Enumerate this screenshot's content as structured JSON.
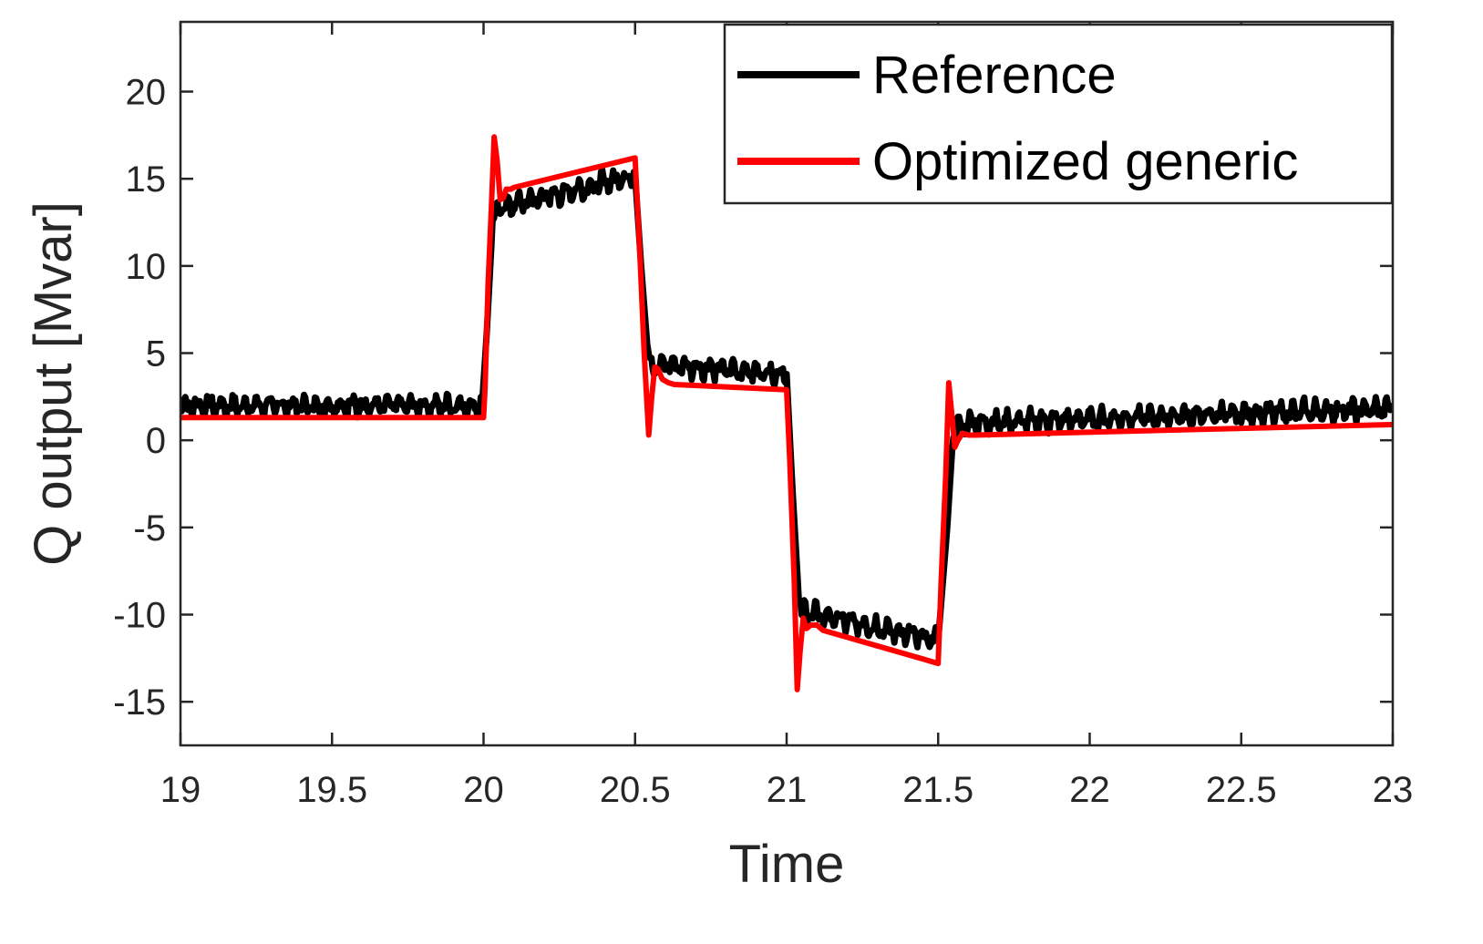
{
  "chart_data": {
    "type": "line",
    "title": "",
    "xlabel": "Time",
    "ylabel": "Q output [Mvar]",
    "xlim": [
      19,
      23
    ],
    "ylim": [
      -17.5,
      24
    ],
    "xticks": [
      19,
      19.5,
      20,
      20.5,
      21,
      21.5,
      22,
      22.5,
      23
    ],
    "xtick_labels": [
      "19",
      "19.5",
      "20",
      "20.5",
      "21",
      "21.5",
      "22",
      "22.5",
      "23"
    ],
    "yticks": [
      -15,
      -10,
      -5,
      0,
      5,
      10,
      15,
      20
    ],
    "ytick_labels": [
      "-15",
      "-10",
      "-5",
      "0",
      "5",
      "10",
      "15",
      "20"
    ],
    "grid": false,
    "legend_position": "top-right",
    "series": [
      {
        "name": "Reference",
        "color": "#000000",
        "noise_amplitude": 0.7,
        "x": [
          19.0,
          19.995,
          20.01,
          20.03,
          20.05,
          20.5,
          20.52,
          20.54,
          20.55,
          21.0,
          21.02,
          21.04,
          21.05,
          21.5,
          21.53,
          21.55,
          21.6,
          23.0
        ],
        "y": [
          2.0,
          2.0,
          6.0,
          12.5,
          13.3,
          15.2,
          10.0,
          5.5,
          4.4,
          3.8,
          -3.0,
          -9.0,
          -9.8,
          -11.5,
          -5.0,
          0.5,
          1.0,
          1.8
        ]
      },
      {
        "name": "Optimized generic",
        "color": "#ff0000",
        "noise_amplitude": 0,
        "x": [
          19.0,
          20.0,
          20.005,
          20.015,
          20.025,
          20.035,
          20.045,
          20.055,
          20.065,
          20.075,
          20.09,
          20.1,
          20.5,
          20.515,
          20.53,
          20.545,
          20.555,
          20.565,
          20.575,
          20.59,
          20.61,
          20.63,
          21.0,
          21.01,
          21.025,
          21.035,
          21.045,
          21.055,
          21.065,
          21.08,
          21.1,
          21.12,
          21.5,
          21.51,
          21.525,
          21.535,
          21.545,
          21.555,
          21.565,
          21.58,
          21.6,
          21.62,
          23.0
        ],
        "y": [
          1.3,
          1.3,
          3.0,
          9.0,
          13.0,
          17.4,
          16.0,
          13.8,
          13.9,
          14.4,
          14.4,
          14.5,
          16.2,
          11.0,
          5.0,
          0.3,
          2.5,
          4.2,
          4.1,
          3.5,
          3.3,
          3.2,
          2.9,
          -1.0,
          -8.0,
          -14.3,
          -12.0,
          -10.2,
          -10.8,
          -10.6,
          -10.6,
          -10.9,
          -12.8,
          -8.0,
          -2.0,
          3.3,
          1.5,
          -0.4,
          0.0,
          0.4,
          0.3,
          0.3,
          0.9
        ]
      }
    ]
  }
}
